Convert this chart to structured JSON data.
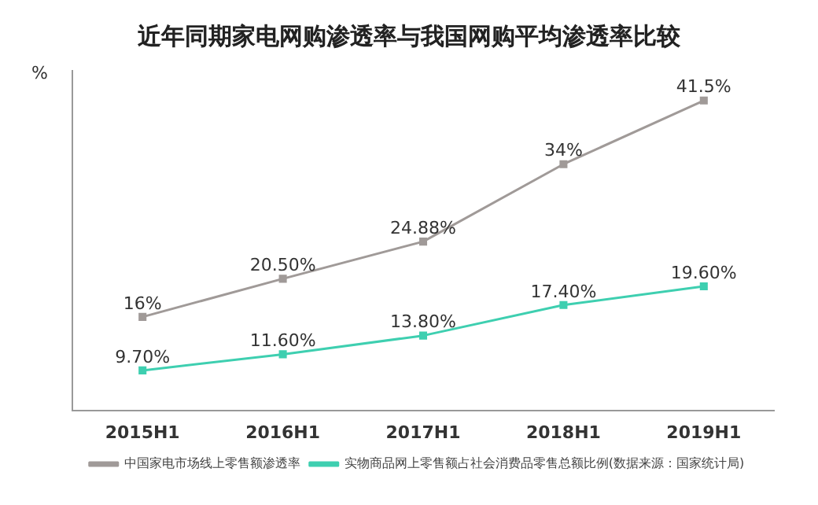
{
  "chart_data": {
    "type": "line",
    "title": "近年同期家电网购渗透率与我国网购平均渗透率比较",
    "ylabel": "%",
    "categories": [
      "2015H1",
      "2016H1",
      "2017H1",
      "2018H1",
      "2019H1"
    ],
    "series": [
      {
        "name": "中国家电市场线上零售额渗透率",
        "color": "#a09a98",
        "values": [
          16,
          20.5,
          24.88,
          34,
          41.5
        ],
        "value_labels": [
          "16%",
          "20.50%",
          "24.88%",
          "34%",
          "41.5%"
        ]
      },
      {
        "name": "实物商品网上零售额占社会消费品零售总额比例(数据来源：国家统计局)",
        "color": "#3ecfb0",
        "values": [
          9.7,
          11.6,
          13.8,
          17.4,
          19.6
        ],
        "value_labels": [
          "9.70%",
          "11.60%",
          "13.80%",
          "17.40%",
          "19.60%"
        ]
      }
    ],
    "marker": "square",
    "grid": false,
    "legend": "bottom"
  }
}
